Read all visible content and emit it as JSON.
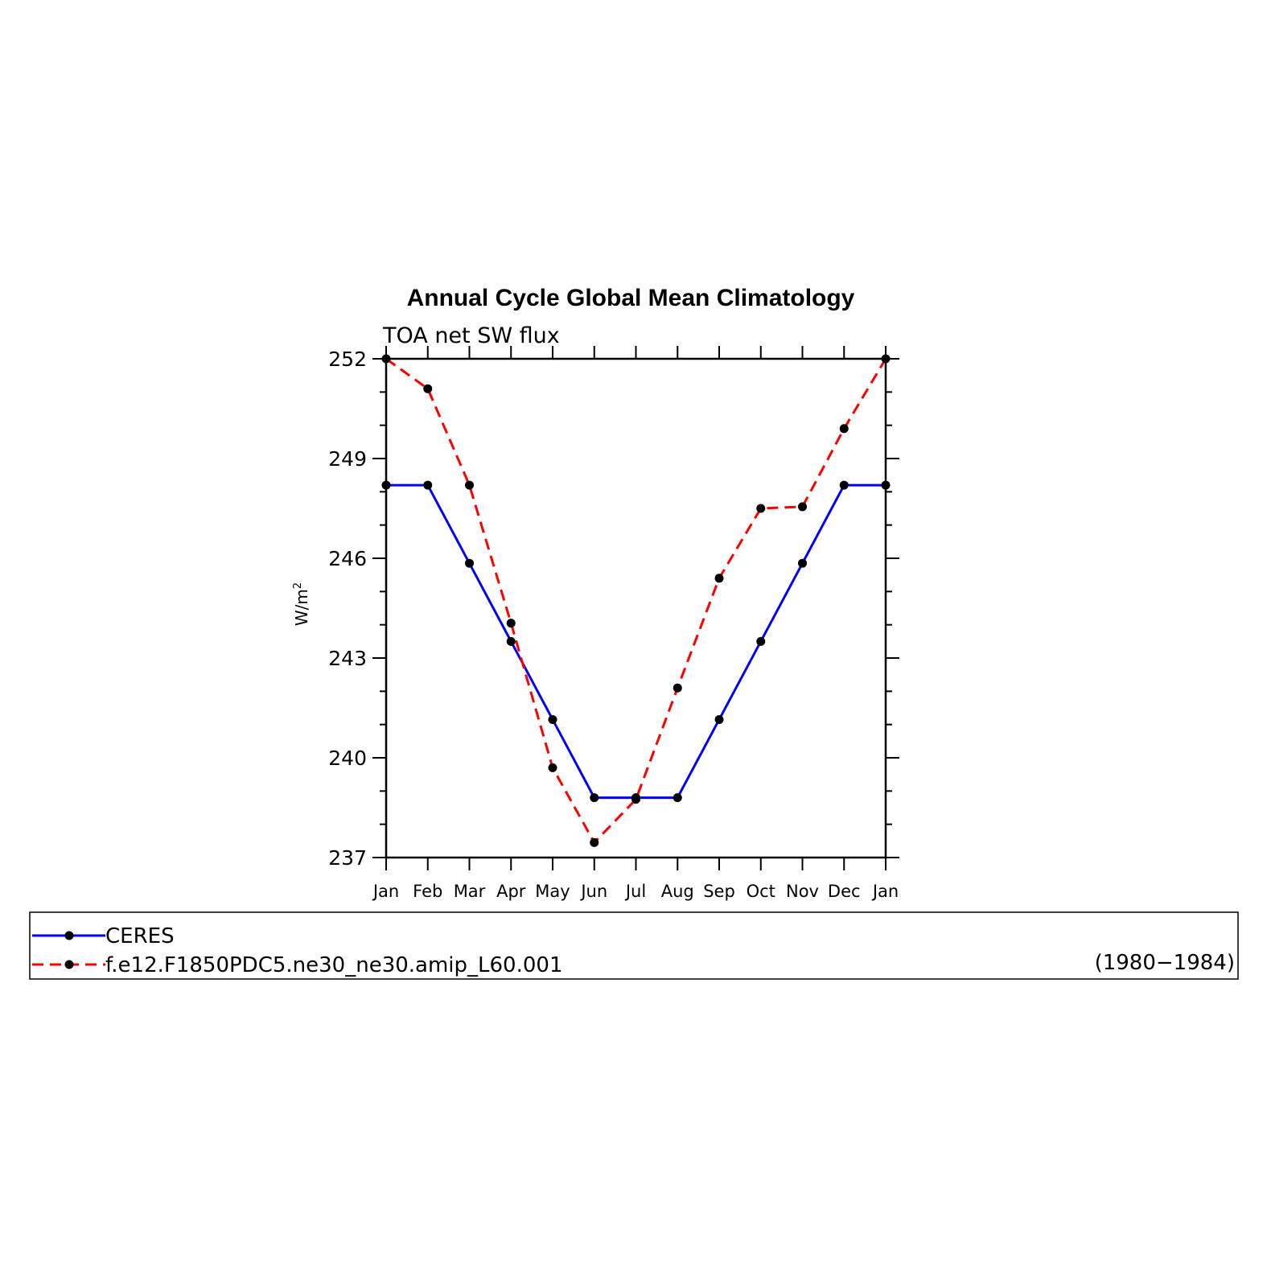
{
  "chart_data": {
    "type": "line",
    "title": "Annual Cycle Global Mean Climatology",
    "subtitle": "TOA net SW flux",
    "ylabel": "W/m",
    "ylabel_sup": "2",
    "ylim": [
      237,
      252
    ],
    "yticks": [
      "237",
      "240",
      "243",
      "246",
      "249",
      "252"
    ],
    "categories": [
      "Jan",
      "Feb",
      "Mar",
      "Apr",
      "May",
      "Jun",
      "Jul",
      "Aug",
      "Sep",
      "Oct",
      "Nov",
      "Dec",
      "Jan"
    ],
    "series": [
      {
        "name": "CERES",
        "color": "#0000ff",
        "dash": "solid",
        "values": [
          248.2,
          248.2,
          245.85,
          243.5,
          241.15,
          238.8,
          238.8,
          238.8,
          241.15,
          243.5,
          245.85,
          248.2,
          248.2
        ]
      },
      {
        "name": "f.e12.F1850PDC5.ne30_ne30.amip_L60.001",
        "color": "#ff0000",
        "dash": "dashed",
        "values": [
          252.0,
          251.1,
          248.2,
          244.05,
          239.7,
          237.45,
          238.75,
          242.1,
          245.4,
          247.5,
          247.55,
          249.9,
          252.0
        ]
      }
    ],
    "legend_note": "(1980−1984)",
    "grid": false,
    "legend_position": "bottom"
  }
}
